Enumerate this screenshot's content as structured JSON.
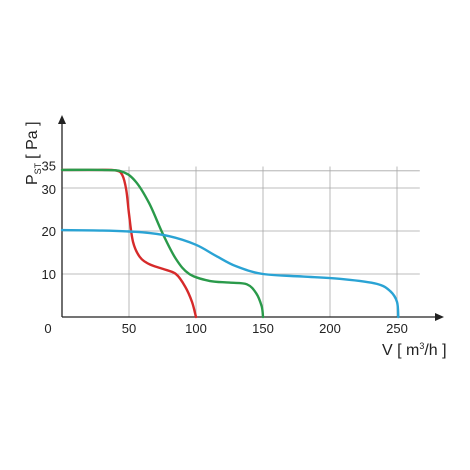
{
  "chart_data": {
    "type": "line",
    "ylabel": {
      "main": "P",
      "sub": "ST",
      "unit": "[ Pa ]"
    },
    "xlabel": {
      "main": "V [ m",
      "sup": "3",
      "tail": "/h ]"
    },
    "xlim": [
      0,
      270
    ],
    "ylim": [
      0,
      45
    ],
    "x_ticks": [
      0,
      50,
      100,
      150,
      200,
      250
    ],
    "x_tick_labels": [
      "0",
      "50",
      "100",
      "150",
      "200",
      "250"
    ],
    "y_ticks": [
      10,
      20,
      30,
      35
    ],
    "y_tick_labels": [
      "10",
      "20",
      "30",
      "35"
    ],
    "x_grid": [
      50,
      100,
      150,
      200,
      250
    ],
    "y_grid": [
      10,
      20,
      30,
      34
    ],
    "grid": true,
    "series": [
      {
        "color": "#d62a2a",
        "points": [
          [
            0,
            34.2
          ],
          [
            25,
            34.2
          ],
          [
            40,
            34.1
          ],
          [
            45,
            33.0
          ],
          [
            48,
            29.5
          ],
          [
            50,
            24.0
          ],
          [
            53,
            17.5
          ],
          [
            58,
            14.0
          ],
          [
            65,
            12.3
          ],
          [
            75,
            11.2
          ],
          [
            85,
            10.0
          ],
          [
            92,
            7.0
          ],
          [
            97,
            3.5
          ],
          [
            100,
            0
          ]
        ]
      },
      {
        "color": "#2a9a4a",
        "points": [
          [
            0,
            34.2
          ],
          [
            30,
            34.2
          ],
          [
            45,
            33.8
          ],
          [
            55,
            31.5
          ],
          [
            65,
            26.5
          ],
          [
            75,
            19.5
          ],
          [
            85,
            13.5
          ],
          [
            95,
            10.0
          ],
          [
            110,
            8.4
          ],
          [
            125,
            8.0
          ],
          [
            138,
            7.6
          ],
          [
            145,
            5.5
          ],
          [
            149,
            2.5
          ],
          [
            150,
            0
          ]
        ]
      },
      {
        "color": "#2aa3d4",
        "points": [
          [
            0,
            20.2
          ],
          [
            30,
            20.1
          ],
          [
            60,
            19.7
          ],
          [
            80,
            18.8
          ],
          [
            100,
            16.8
          ],
          [
            115,
            14.2
          ],
          [
            130,
            11.8
          ],
          [
            150,
            10.0
          ],
          [
            180,
            9.4
          ],
          [
            210,
            8.8
          ],
          [
            235,
            7.7
          ],
          [
            245,
            6.0
          ],
          [
            250,
            3.5
          ],
          [
            251,
            0
          ]
        ]
      }
    ]
  }
}
